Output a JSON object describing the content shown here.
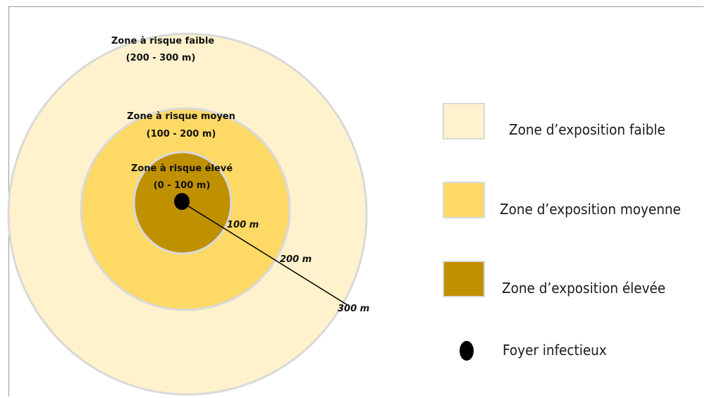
{
  "diagram": {
    "zones": [
      {
        "key": "faible",
        "label_line1": "Zone à risque faible",
        "label_line2": "(200 - 300 m)",
        "color": "#FFF2CC"
      },
      {
        "key": "moyen",
        "label_line1": "Zone à risque moyen",
        "label_line2": "(100 - 200 m)",
        "color": "#FFD965"
      },
      {
        "key": "eleve",
        "label_line1": "Zone à risque élevé",
        "label_line2": "(0 - 100 m)",
        "color": "#BF9000"
      }
    ],
    "radius_labels": [
      "100 m",
      "200 m",
      "300 m"
    ],
    "focus_color": "#000000",
    "ring_border_color": "#D9D9D9"
  },
  "legend": {
    "items": [
      {
        "label": "Zone d’exposition faible",
        "color": "#FFF2CC"
      },
      {
        "label": "Zone d’exposition moyenne",
        "color": "#FFD965"
      },
      {
        "label": "Zone d’exposition élevée",
        "color": "#BF9000"
      },
      {
        "label": "Foyer infectieux",
        "color": "#000000"
      }
    ]
  }
}
